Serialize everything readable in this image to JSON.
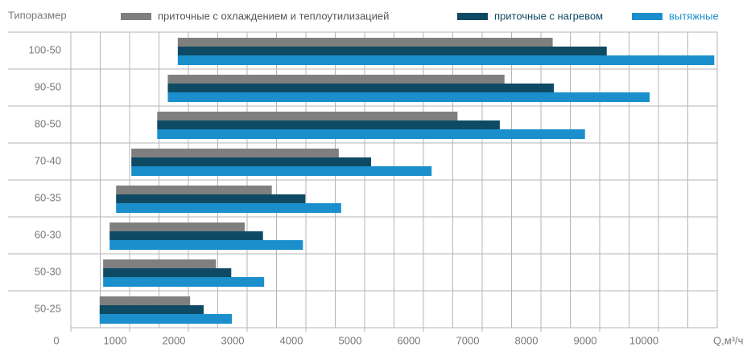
{
  "chart_data": {
    "type": "range-bar",
    "y_label": "Типоразмер",
    "x_label": "Q,м³/ч",
    "categories": [
      "100-50",
      "90-50",
      "80-50",
      "70-40",
      "60-35",
      "60-30",
      "50-30",
      "50-25"
    ],
    "series": [
      {
        "name": "приточные с охлаждением и теплоутилизацией",
        "color": "#7f7f7f",
        "text_color": "#555555",
        "low": [
          1820,
          1650,
          1470,
          1030,
          770,
          660,
          550,
          490
        ],
        "high": [
          8200,
          7380,
          6580,
          4560,
          3420,
          2960,
          2470,
          2030
        ]
      },
      {
        "name": "приточные с нагревом",
        "color": "#0e4a63",
        "text_color": "#0e4a63",
        "low": [
          1820,
          1650,
          1470,
          1030,
          770,
          660,
          550,
          490
        ],
        "high": [
          9120,
          8220,
          7300,
          5110,
          3990,
          3270,
          2730,
          2260
        ]
      },
      {
        "name": "вытяжные",
        "color": "#1a8fcc",
        "text_color": "#1a8fcc",
        "low": [
          1820,
          1650,
          1470,
          1030,
          770,
          660,
          550,
          490
        ],
        "high": [
          10950,
          9850,
          8750,
          6140,
          4600,
          3950,
          3290,
          2740
        ]
      }
    ],
    "xlim": [
      0,
      11000
    ],
    "xticks": [
      0,
      1000,
      2000,
      3000,
      4000,
      5000,
      6000,
      7000,
      8000,
      9000,
      10000
    ],
    "xminor": [
      500,
      1500,
      2500,
      3500,
      4500,
      5500,
      6500,
      7500,
      8500,
      9500,
      10500,
      11000
    ],
    "grid": true
  }
}
